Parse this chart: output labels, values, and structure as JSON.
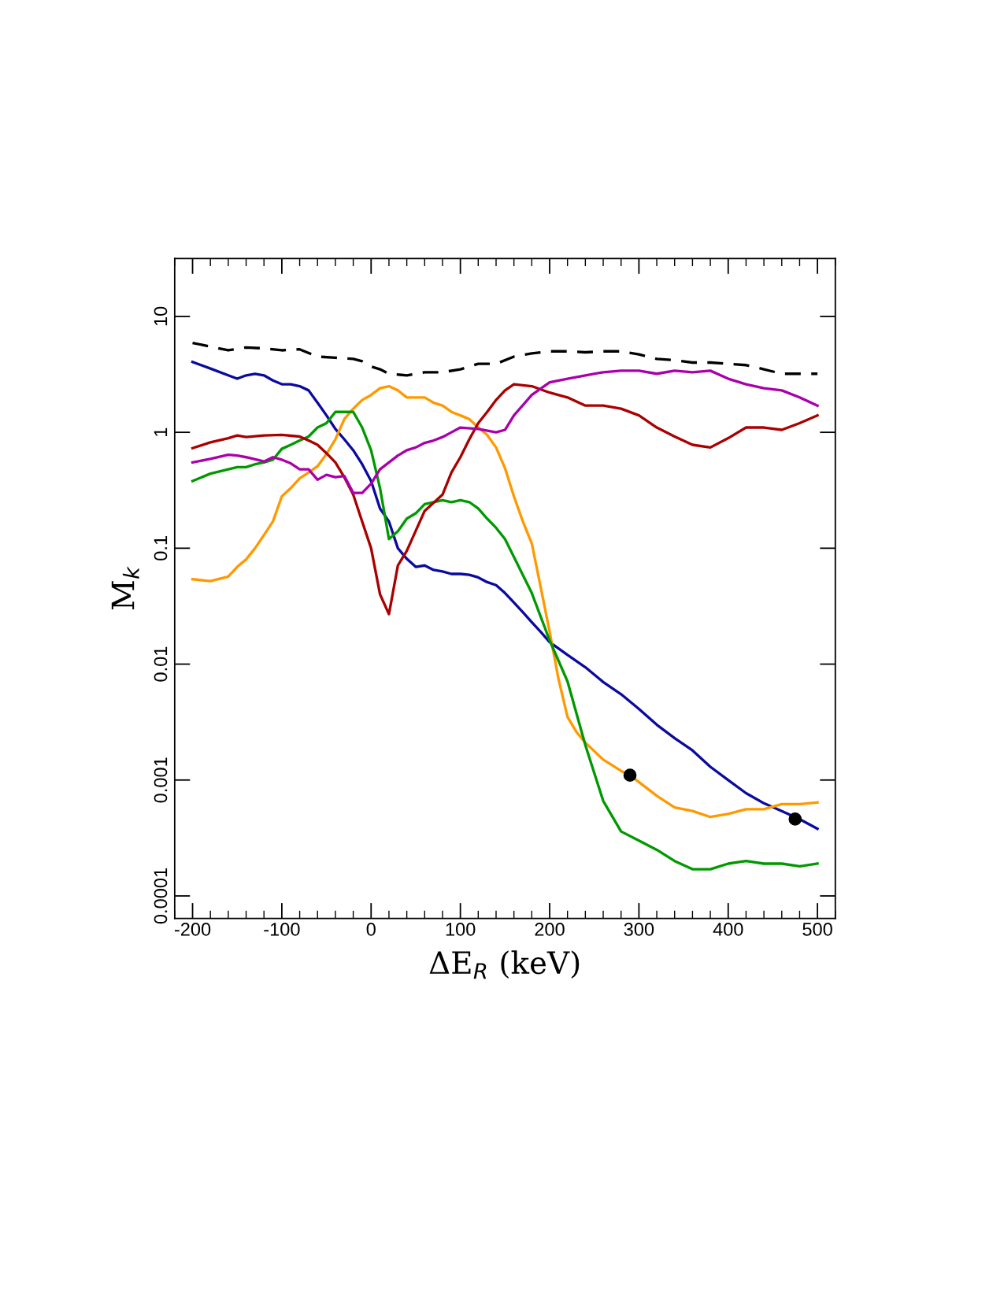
{
  "chart_data": {
    "type": "line",
    "xlabel": "ΔE$_{R}$ (keV)",
    "ylabel": "M$_{k}$",
    "log": "y",
    "xlim": [
      -220,
      520
    ],
    "ylim": [
      6.4e-05,
      31.6
    ],
    "xticks": [
      -200,
      -100,
      0,
      100,
      200,
      300,
      400,
      500
    ],
    "yticks": [
      {
        "value": 0.0001,
        "label": "0.0001"
      },
      {
        "value": 0.001,
        "label": "0.001"
      },
      {
        "value": 0.01,
        "label": "0.01"
      },
      {
        "value": 0.1,
        "label": "0.1"
      },
      {
        "value": 1,
        "label": "1"
      },
      {
        "value": 10,
        "label": "10"
      }
    ],
    "grid": false,
    "legend": false,
    "series": [
      {
        "color": "#000000",
        "line_style": "dashed",
        "x": [
          -200,
          -180,
          -160,
          -140,
          -120,
          -100,
          -80,
          -60,
          -40,
          -20,
          -10,
          0,
          10,
          20,
          40,
          60,
          80,
          100,
          120,
          140,
          160,
          180,
          200,
          220,
          240,
          260,
          280,
          300,
          320,
          340,
          360,
          380,
          400,
          420,
          440,
          460,
          480,
          500
        ],
        "values": [
          5.9,
          5.5,
          5.1,
          5.4,
          5.3,
          5.1,
          5.2,
          4.5,
          4.4,
          4.3,
          4.1,
          3.7,
          3.5,
          3.2,
          3.1,
          3.3,
          3.3,
          3.5,
          3.9,
          3.9,
          4.5,
          4.8,
          5.0,
          5.0,
          4.9,
          5.0,
          5.0,
          4.7,
          4.3,
          4.2,
          4.0,
          4.0,
          3.9,
          3.8,
          3.5,
          3.2,
          3.2,
          3.2
        ]
      },
      {
        "color": "#0a0aa0",
        "x": [
          -200,
          -180,
          -160,
          -150,
          -140,
          -130,
          -120,
          -110,
          -100,
          -90,
          -80,
          -70,
          -60,
          -50,
          -40,
          -30,
          -20,
          -10,
          0,
          10,
          20,
          30,
          40,
          50,
          60,
          70,
          80,
          90,
          100,
          110,
          120,
          130,
          140,
          150,
          160,
          170,
          180,
          190,
          200,
          220,
          240,
          260,
          280,
          300,
          320,
          340,
          360,
          380,
          400,
          420,
          440,
          460,
          480,
          500
        ],
        "values": [
          4.05,
          3.55,
          3.1,
          2.9,
          3.1,
          3.2,
          3.1,
          2.8,
          2.6,
          2.6,
          2.5,
          2.3,
          1.8,
          1.4,
          1.07,
          0.87,
          0.7,
          0.53,
          0.38,
          0.22,
          0.17,
          0.1,
          0.081,
          0.069,
          0.071,
          0.065,
          0.063,
          0.06,
          0.06,
          0.059,
          0.056,
          0.051,
          0.048,
          0.041,
          0.034,
          0.028,
          0.023,
          0.019,
          0.0155,
          0.012,
          0.0094,
          0.007,
          0.0055,
          0.0041,
          0.003,
          0.0023,
          0.0018,
          0.0013,
          0.001,
          0.00077,
          0.00063,
          0.00054,
          0.00046,
          0.00038
        ]
      },
      {
        "color": "#ff9900",
        "x": [
          -200,
          -180,
          -160,
          -150,
          -140,
          -130,
          -120,
          -110,
          -100,
          -90,
          -80,
          -70,
          -60,
          -50,
          -40,
          -30,
          -20,
          -10,
          0,
          10,
          20,
          30,
          40,
          50,
          60,
          70,
          80,
          90,
          100,
          110,
          120,
          130,
          140,
          150,
          160,
          170,
          180,
          190,
          200,
          210,
          220,
          230,
          240,
          260,
          280,
          290,
          300,
          320,
          340,
          360,
          380,
          400,
          420,
          440,
          460,
          480,
          500
        ],
        "values": [
          0.054,
          0.052,
          0.057,
          0.069,
          0.08,
          0.1,
          0.13,
          0.17,
          0.28,
          0.33,
          0.4,
          0.45,
          0.51,
          0.65,
          0.87,
          1.3,
          1.6,
          1.9,
          2.1,
          2.4,
          2.5,
          2.3,
          2.0,
          2.0,
          2.0,
          1.8,
          1.7,
          1.5,
          1.4,
          1.3,
          1.1,
          0.95,
          0.74,
          0.49,
          0.28,
          0.17,
          0.11,
          0.046,
          0.019,
          0.0074,
          0.0035,
          0.0026,
          0.0021,
          0.0015,
          0.0012,
          0.0011,
          0.00096,
          0.00073,
          0.00058,
          0.00054,
          0.00048,
          0.00051,
          0.00056,
          0.00056,
          0.00062,
          0.00062,
          0.00064
        ]
      },
      {
        "color": "#009900",
        "x": [
          -200,
          -180,
          -160,
          -150,
          -140,
          -130,
          -120,
          -110,
          -100,
          -90,
          -80,
          -70,
          -60,
          -50,
          -40,
          -30,
          -20,
          -10,
          0,
          10,
          20,
          30,
          40,
          50,
          60,
          70,
          80,
          90,
          100,
          110,
          120,
          130,
          140,
          150,
          160,
          180,
          200,
          220,
          240,
          260,
          280,
          300,
          320,
          340,
          360,
          380,
          400,
          420,
          440,
          460,
          480,
          500
        ],
        "values": [
          0.38,
          0.44,
          0.48,
          0.5,
          0.5,
          0.53,
          0.55,
          0.58,
          0.72,
          0.78,
          0.85,
          0.92,
          1.1,
          1.2,
          1.5,
          1.5,
          1.5,
          1.1,
          0.7,
          0.33,
          0.12,
          0.14,
          0.18,
          0.2,
          0.24,
          0.25,
          0.26,
          0.25,
          0.26,
          0.25,
          0.22,
          0.18,
          0.15,
          0.12,
          0.084,
          0.041,
          0.016,
          0.0071,
          0.002,
          0.00066,
          0.00036,
          0.0003,
          0.00025,
          0.0002,
          0.00017,
          0.00017,
          0.00019,
          0.0002,
          0.00019,
          0.00019,
          0.00018,
          0.00019
        ]
      },
      {
        "color": "#aa0000",
        "x": [
          -200,
          -180,
          -160,
          -150,
          -140,
          -120,
          -100,
          -80,
          -70,
          -60,
          -50,
          -40,
          -30,
          -20,
          -10,
          0,
          10,
          20,
          30,
          40,
          60,
          80,
          90,
          100,
          110,
          120,
          130,
          140,
          150,
          160,
          180,
          200,
          220,
          240,
          260,
          280,
          300,
          320,
          340,
          360,
          380,
          400,
          420,
          440,
          460,
          480,
          500
        ],
        "values": [
          0.73,
          0.82,
          0.89,
          0.94,
          0.91,
          0.94,
          0.95,
          0.92,
          0.85,
          0.78,
          0.66,
          0.55,
          0.41,
          0.29,
          0.17,
          0.1,
          0.04,
          0.027,
          0.071,
          0.095,
          0.21,
          0.29,
          0.45,
          0.61,
          0.87,
          1.2,
          1.5,
          1.9,
          2.3,
          2.6,
          2.5,
          2.2,
          2.0,
          1.7,
          1.7,
          1.6,
          1.4,
          1.1,
          0.92,
          0.78,
          0.74,
          0.89,
          1.1,
          1.1,
          1.05,
          1.2,
          1.4
        ]
      },
      {
        "color": "#aa00aa",
        "x": [
          -200,
          -180,
          -160,
          -150,
          -140,
          -120,
          -110,
          -100,
          -90,
          -80,
          -70,
          -60,
          -50,
          -40,
          -30,
          -20,
          -10,
          0,
          10,
          20,
          30,
          40,
          50,
          60,
          70,
          80,
          90,
          100,
          120,
          140,
          150,
          160,
          180,
          200,
          220,
          240,
          260,
          280,
          300,
          320,
          340,
          360,
          380,
          400,
          420,
          440,
          460,
          480,
          500
        ],
        "values": [
          0.55,
          0.59,
          0.64,
          0.63,
          0.61,
          0.56,
          0.61,
          0.58,
          0.54,
          0.48,
          0.48,
          0.39,
          0.43,
          0.41,
          0.42,
          0.3,
          0.3,
          0.36,
          0.48,
          0.55,
          0.63,
          0.7,
          0.74,
          0.81,
          0.85,
          0.91,
          1.0,
          1.1,
          1.07,
          1.0,
          1.05,
          1.4,
          2.1,
          2.7,
          2.9,
          3.1,
          3.3,
          3.4,
          3.4,
          3.2,
          3.4,
          3.3,
          3.4,
          2.9,
          2.6,
          2.4,
          2.3,
          2.0,
          1.7
        ]
      },
      {
        "type": "scatter",
        "color": "#000000",
        "marker": "circle",
        "x": [
          290,
          475
        ],
        "values": [
          0.0011,
          0.00046
        ]
      }
    ]
  }
}
